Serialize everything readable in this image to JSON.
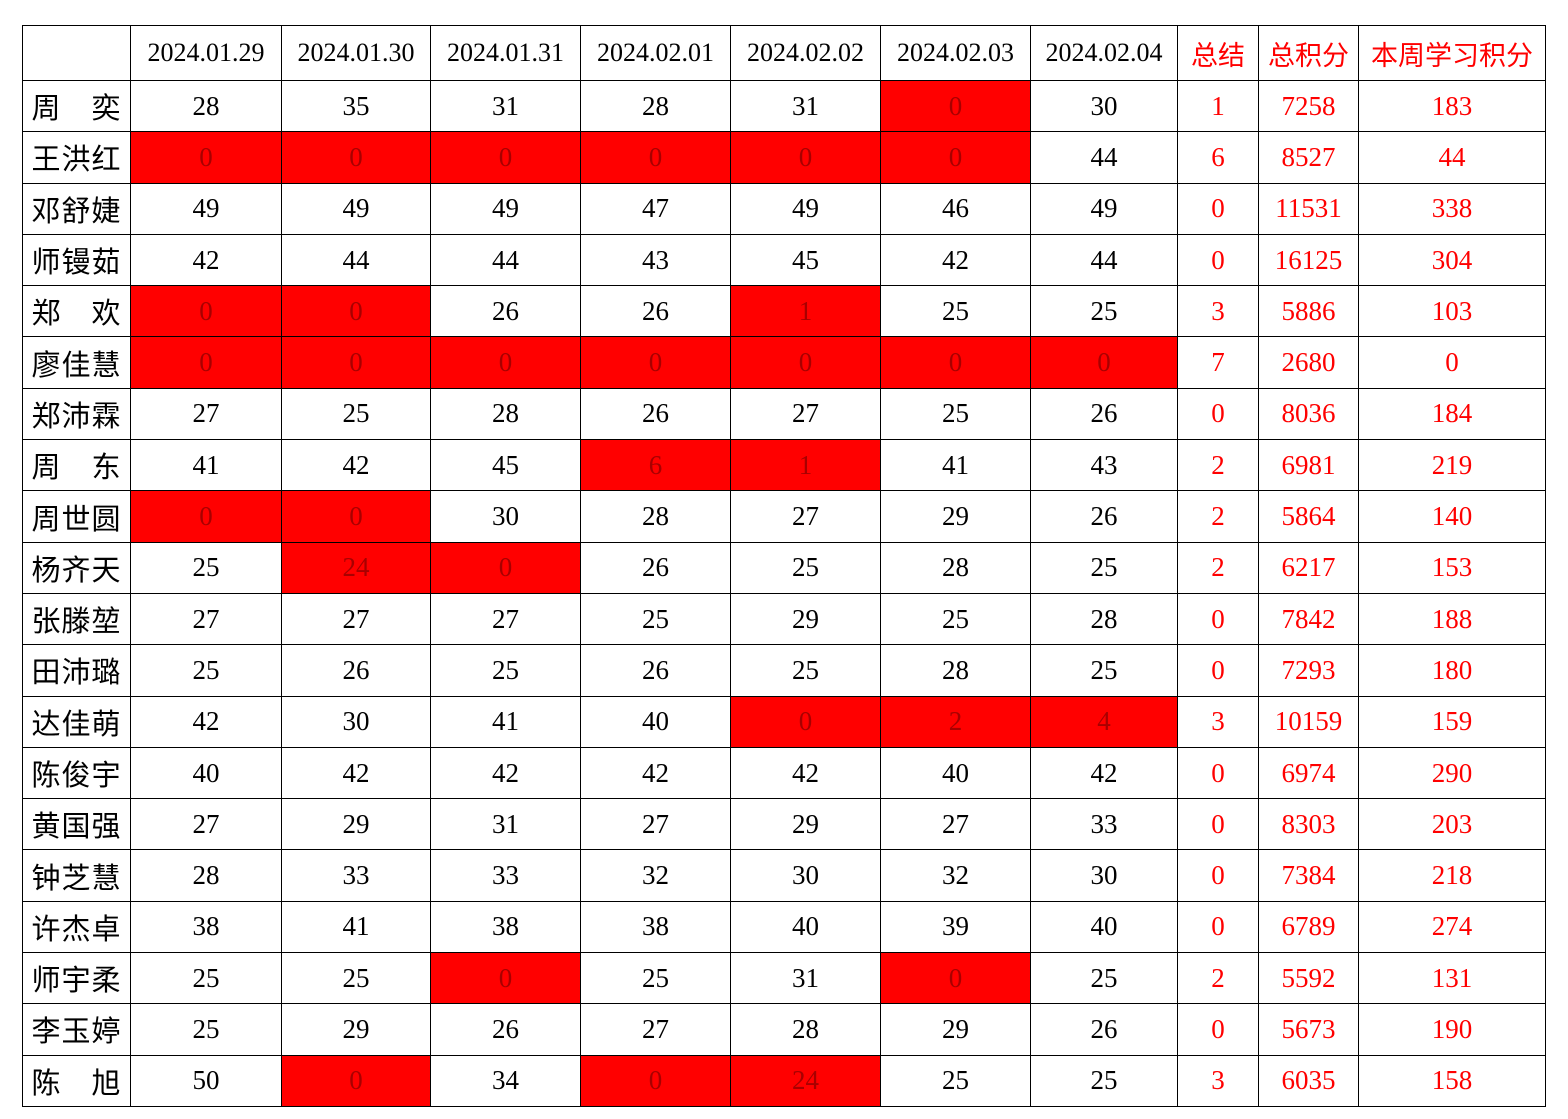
{
  "table": {
    "corner_label": "",
    "date_columns": [
      "2024.01.29",
      "2024.01.30",
      "2024.01.31",
      "2024.02.01",
      "2024.02.02",
      "2024.02.03",
      "2024.02.04"
    ],
    "summary_columns": [
      "总结",
      "总积分",
      "本周学习积分"
    ],
    "rows": [
      {
        "name": "周　奕",
        "scores": [
          28,
          35,
          31,
          28,
          31,
          0,
          30
        ],
        "red_cols": [
          5
        ],
        "summary": 1,
        "total_points": 7258,
        "week_points": 183
      },
      {
        "name": "王洪红",
        "scores": [
          0,
          0,
          0,
          0,
          0,
          0,
          44
        ],
        "red_cols": [
          0,
          1,
          2,
          3,
          4,
          5
        ],
        "summary": 6,
        "total_points": 8527,
        "week_points": 44
      },
      {
        "name": "邓舒婕",
        "scores": [
          49,
          49,
          49,
          47,
          49,
          46,
          49
        ],
        "red_cols": [],
        "summary": 0,
        "total_points": 11531,
        "week_points": 338
      },
      {
        "name": "师镘茹",
        "scores": [
          42,
          44,
          44,
          43,
          45,
          42,
          44
        ],
        "red_cols": [],
        "summary": 0,
        "total_points": 16125,
        "week_points": 304
      },
      {
        "name": "郑　欢",
        "scores": [
          0,
          0,
          26,
          26,
          1,
          25,
          25
        ],
        "red_cols": [
          0,
          1,
          4
        ],
        "summary": 3,
        "total_points": 5886,
        "week_points": 103
      },
      {
        "name": "廖佳慧",
        "scores": [
          0,
          0,
          0,
          0,
          0,
          0,
          0
        ],
        "red_cols": [
          0,
          1,
          2,
          3,
          4,
          5,
          6
        ],
        "summary": 7,
        "total_points": 2680,
        "week_points": 0
      },
      {
        "name": "郑沛霖",
        "scores": [
          27,
          25,
          28,
          26,
          27,
          25,
          26
        ],
        "red_cols": [],
        "summary": 0,
        "total_points": 8036,
        "week_points": 184
      },
      {
        "name": "周　东",
        "scores": [
          41,
          42,
          45,
          6,
          1,
          41,
          43
        ],
        "red_cols": [
          3,
          4
        ],
        "summary": 2,
        "total_points": 6981,
        "week_points": 219
      },
      {
        "name": "周世圆",
        "scores": [
          0,
          0,
          30,
          28,
          27,
          29,
          26
        ],
        "red_cols": [
          0,
          1
        ],
        "summary": 2,
        "total_points": 5864,
        "week_points": 140
      },
      {
        "name": "杨齐天",
        "scores": [
          25,
          24,
          0,
          26,
          25,
          28,
          25
        ],
        "red_cols": [
          1,
          2
        ],
        "summary": 2,
        "total_points": 6217,
        "week_points": 153
      },
      {
        "name": "张滕堃",
        "scores": [
          27,
          27,
          27,
          25,
          29,
          25,
          28
        ],
        "red_cols": [],
        "summary": 0,
        "total_points": 7842,
        "week_points": 188
      },
      {
        "name": "田沛璐",
        "scores": [
          25,
          26,
          25,
          26,
          25,
          28,
          25
        ],
        "red_cols": [],
        "summary": 0,
        "total_points": 7293,
        "week_points": 180
      },
      {
        "name": "达佳萌",
        "scores": [
          42,
          30,
          41,
          40,
          0,
          2,
          4
        ],
        "red_cols": [
          4,
          5,
          6
        ],
        "summary": 3,
        "total_points": 10159,
        "week_points": 159
      },
      {
        "name": "陈俊宇",
        "scores": [
          40,
          42,
          42,
          42,
          42,
          40,
          42
        ],
        "red_cols": [],
        "summary": 0,
        "total_points": 6974,
        "week_points": 290
      },
      {
        "name": "黄国强",
        "scores": [
          27,
          29,
          31,
          27,
          29,
          27,
          33
        ],
        "red_cols": [],
        "summary": 0,
        "total_points": 8303,
        "week_points": 203
      },
      {
        "name": "钟芝慧",
        "scores": [
          28,
          33,
          33,
          32,
          30,
          32,
          30
        ],
        "red_cols": [],
        "summary": 0,
        "total_points": 7384,
        "week_points": 218
      },
      {
        "name": "许杰卓",
        "scores": [
          38,
          41,
          38,
          38,
          40,
          39,
          40
        ],
        "red_cols": [],
        "summary": 0,
        "total_points": 6789,
        "week_points": 274
      },
      {
        "name": "师宇柔",
        "scores": [
          25,
          25,
          0,
          25,
          31,
          0,
          25
        ],
        "red_cols": [
          2,
          5
        ],
        "summary": 2,
        "total_points": 5592,
        "week_points": 131
      },
      {
        "name": "李玉婷",
        "scores": [
          25,
          29,
          26,
          27,
          28,
          29,
          26
        ],
        "red_cols": [],
        "summary": 0,
        "total_points": 5673,
        "week_points": 190
      },
      {
        "name": "陈　旭",
        "scores": [
          50,
          0,
          34,
          0,
          24,
          25,
          25
        ],
        "red_cols": [
          1,
          3,
          4
        ],
        "summary": 3,
        "total_points": 6035,
        "week_points": 158
      }
    ]
  },
  "colors": {
    "highlight_bg": "#ff0000",
    "highlight_text": "#a80000",
    "summary_text": "#ff0000",
    "grid_line": "#000000"
  }
}
